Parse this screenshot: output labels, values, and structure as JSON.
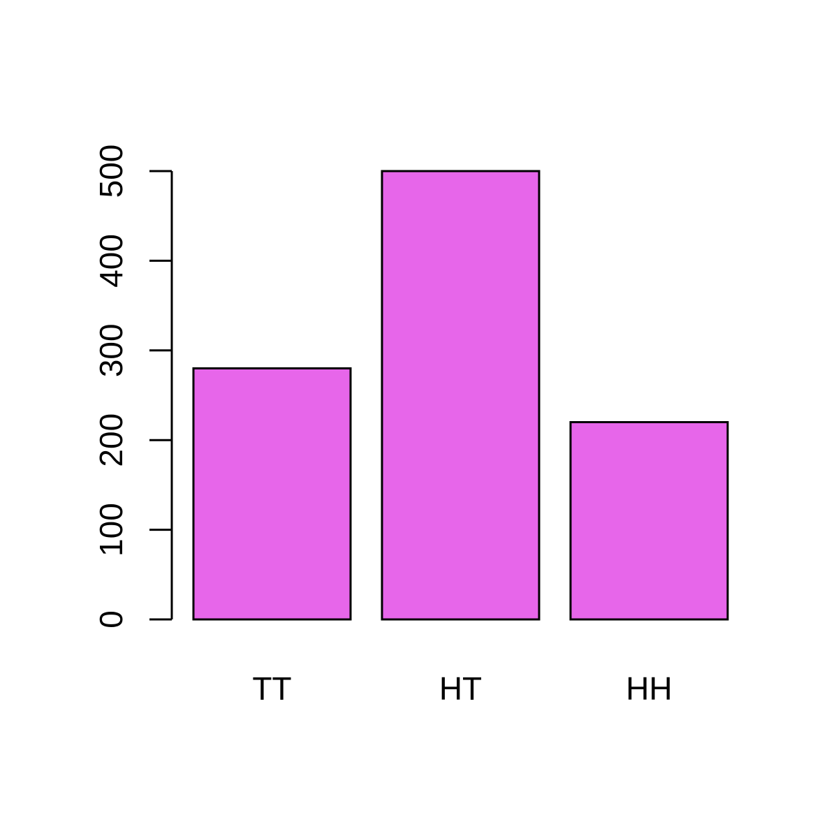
{
  "chart_data": {
    "type": "bar",
    "categories": [
      "TT",
      "HT",
      "HH"
    ],
    "values": [
      280,
      500,
      220
    ],
    "ylim": [
      0,
      500
    ],
    "yticks": [
      0,
      100,
      200,
      300,
      400,
      500
    ],
    "ytick_labels": [
      "0",
      "100",
      "200",
      "300",
      "400",
      "500"
    ],
    "title": "",
    "xlabel": "",
    "ylabel": "",
    "grid": false,
    "legend": "none",
    "bar_color": "#E766EA",
    "border_color": "#000000"
  }
}
